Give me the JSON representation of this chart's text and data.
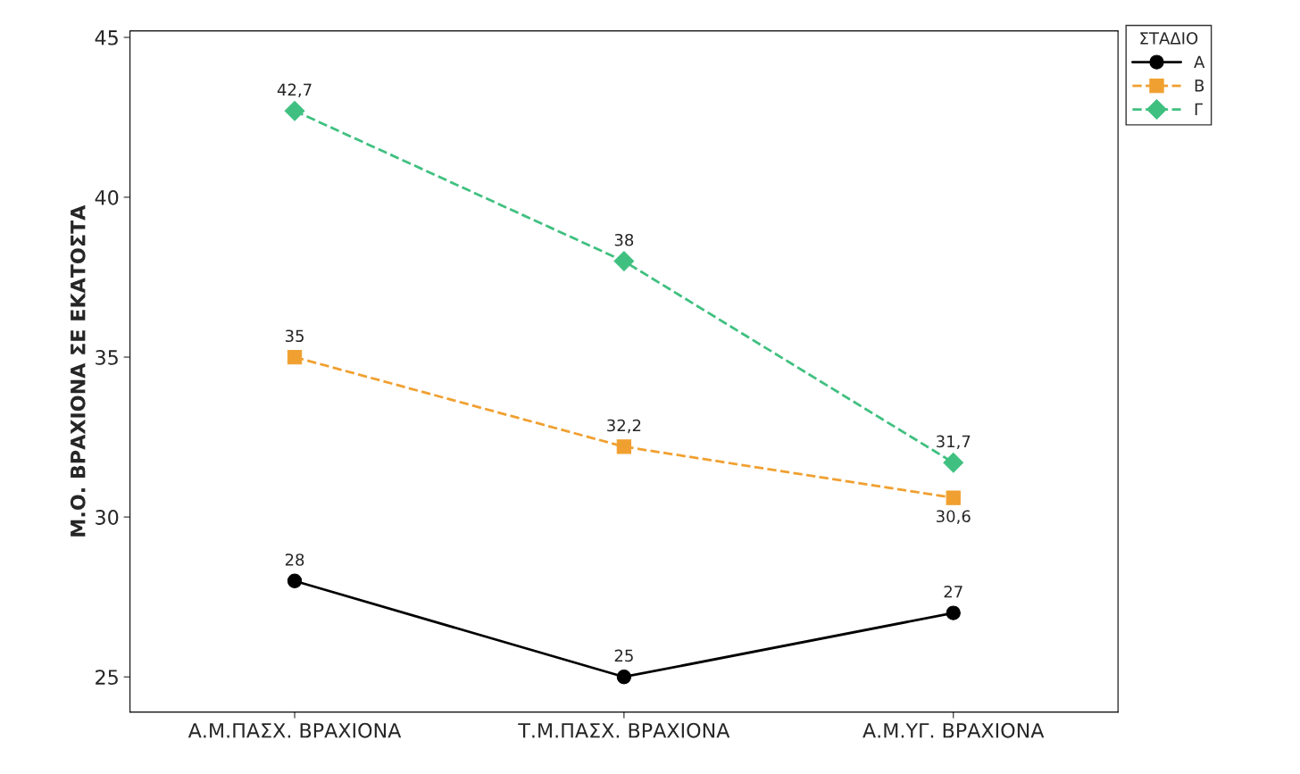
{
  "chart_data": {
    "type": "line",
    "ylabel": "Μ.Ο. ΒΡΑΧΙΟΝΑ ΣΕ ΕΚΑΤΟΣΤΑ",
    "legend_title": "ΣΤΑΔΙΟ",
    "categories": [
      "Α.Μ.ΠΑΣΧ. ΒΡΑΧΙΟΝΑ",
      "Τ.Μ.ΠΑΣΧ. ΒΡΑΧΙΟΝΑ",
      "Α.Μ.ΥΓ. ΒΡΑΧΙΟΝΑ"
    ],
    "series": [
      {
        "name": "Α",
        "color": "#000000",
        "marker": "circle",
        "line_style": "solid",
        "values": [
          28,
          25,
          27
        ],
        "value_labels": [
          "28",
          "25",
          "27"
        ]
      },
      {
        "name": "Β",
        "color": "#f0a030",
        "marker": "square",
        "line_style": "dashed",
        "values": [
          35,
          32.2,
          30.6
        ],
        "value_labels": [
          "35",
          "32,2",
          "30,6"
        ]
      },
      {
        "name": "Γ",
        "color": "#40c080",
        "marker": "diamond",
        "line_style": "dashed",
        "values": [
          42.7,
          38,
          31.7
        ],
        "value_labels": [
          "42,7",
          "38",
          "31,7"
        ]
      }
    ],
    "ylim": [
      23.9,
      45.2
    ],
    "yticks": [
      25,
      30,
      35,
      40,
      45
    ],
    "grid": false,
    "legend": "top right"
  }
}
